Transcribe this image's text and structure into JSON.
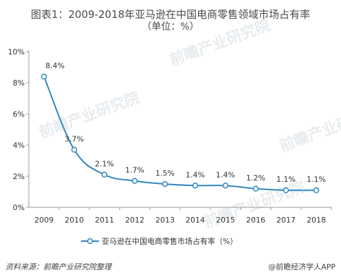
{
  "title": "图表1：2009-2018年亚马逊在中国电商零售领域市场占有率",
  "subtitle": "（单位：%）",
  "source": "资料来源：前瞻产业研究院整理",
  "watermark": "前瞻产业研究院",
  "brand": "@前瞻经济学人APP",
  "colors": {
    "line": "#2e86c1",
    "axis": "#999999",
    "grid": "#d9d9d9",
    "text": "#333333"
  },
  "chart_data": {
    "type": "line",
    "x": [
      "2009",
      "2010",
      "2011",
      "2012",
      "2013",
      "2014",
      "2015",
      "2016",
      "2017",
      "2018"
    ],
    "series": [
      {
        "name": "亚马逊在中国电商零售市场占有率（%）",
        "values": [
          8.4,
          3.7,
          2.1,
          1.7,
          1.5,
          1.4,
          1.4,
          1.2,
          1.1,
          1.1
        ],
        "labels": [
          "8.4%",
          "3.7%",
          "2.1%",
          "1.7%",
          "1.5%",
          "1.4%",
          "1.4%",
          "1.2%",
          "1.1%",
          "1.1%"
        ]
      }
    ],
    "yticks": [
      "0%",
      "2%",
      "4%",
      "6%",
      "8%",
      "10%"
    ],
    "ylim": [
      0,
      10
    ],
    "grid": false,
    "legend": "bottom"
  }
}
